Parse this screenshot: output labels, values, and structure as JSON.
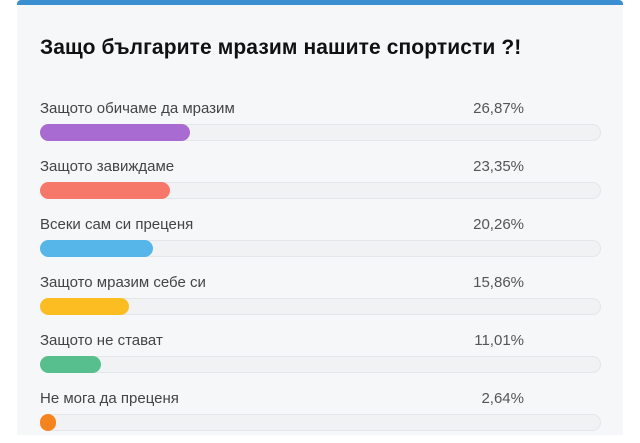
{
  "poll": {
    "title": "Защо българите мразим нашите спортисти ?!",
    "accent": "#3b8fd0",
    "options": [
      {
        "label": "Защото обичаме да мразим",
        "percent_text": "26,87%",
        "percent": 26.87,
        "color": "#a86bd1"
      },
      {
        "label": "Защото завиждаме",
        "percent_text": "23,35%",
        "percent": 23.35,
        "color": "#f5786a"
      },
      {
        "label": "Всеки сам си преценя",
        "percent_text": "20,26%",
        "percent": 20.26,
        "color": "#56b5e9"
      },
      {
        "label": "Защото мразим себе си",
        "percent_text": "15,86%",
        "percent": 15.86,
        "color": "#fbbd22"
      },
      {
        "label": "Защото не стават",
        "percent_text": "11,01%",
        "percent": 11.01,
        "color": "#57bf8e"
      },
      {
        "label": "Не мога да преценя",
        "percent_text": "2,64%",
        "percent": 2.64,
        "color": "#f5841f"
      }
    ]
  }
}
